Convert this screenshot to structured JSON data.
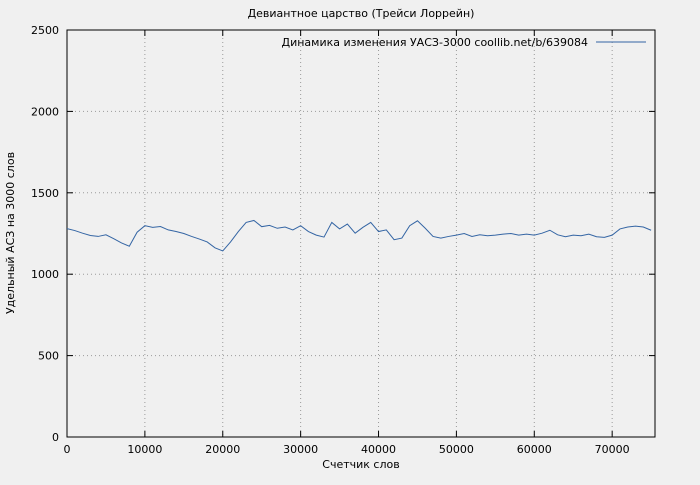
{
  "chart_data": {
    "type": "line",
    "title": "Девиантное царство (Трейси Лоррейн)",
    "legend": "Динамика изменения УАСЗ-3000 coollib.net/b/639084",
    "xlabel": "Счетчик слов",
    "ylabel": "Удельный АСЗ на 3000 слов",
    "xlim": [
      0,
      75500
    ],
    "ylim": [
      0,
      2500
    ],
    "x_ticks": [
      0,
      10000,
      20000,
      30000,
      40000,
      50000,
      60000,
      70000
    ],
    "y_ticks": [
      0,
      500,
      1000,
      1500,
      2000,
      2500
    ],
    "line_color": "#3465a4",
    "background": "#f0f0f0",
    "grid": true,
    "legend_position": "top-right",
    "x": [
      0,
      1000,
      2000,
      3000,
      4000,
      5000,
      6000,
      7000,
      8000,
      9000,
      10000,
      11000,
      12000,
      13000,
      14000,
      15000,
      16000,
      17000,
      18000,
      19000,
      20000,
      21000,
      22000,
      23000,
      24000,
      25000,
      26000,
      27000,
      28000,
      29000,
      30000,
      31000,
      32000,
      33000,
      34000,
      35000,
      36000,
      37000,
      38000,
      39000,
      40000,
      41000,
      42000,
      43000,
      44000,
      45000,
      46000,
      47000,
      48000,
      49000,
      50000,
      51000,
      52000,
      53000,
      54000,
      55000,
      56000,
      57000,
      58000,
      59000,
      60000,
      61000,
      62000,
      63000,
      64000,
      65000,
      66000,
      67000,
      68000,
      69000,
      70000,
      71000,
      72000,
      73000,
      74000,
      75000
    ],
    "y": [
      1280,
      1268,
      1252,
      1238,
      1232,
      1242,
      1218,
      1192,
      1172,
      1258,
      1298,
      1288,
      1293,
      1272,
      1262,
      1250,
      1232,
      1216,
      1198,
      1162,
      1143,
      1198,
      1262,
      1318,
      1330,
      1292,
      1300,
      1282,
      1290,
      1272,
      1298,
      1262,
      1240,
      1228,
      1318,
      1278,
      1308,
      1252,
      1288,
      1318,
      1262,
      1272,
      1212,
      1222,
      1298,
      1328,
      1282,
      1232,
      1222,
      1232,
      1240,
      1250,
      1232,
      1242,
      1236,
      1240,
      1246,
      1250,
      1240,
      1246,
      1240,
      1252,
      1270,
      1242,
      1230,
      1240,
      1236,
      1246,
      1230,
      1226,
      1240,
      1278,
      1290,
      1295,
      1290,
      1270
    ]
  }
}
